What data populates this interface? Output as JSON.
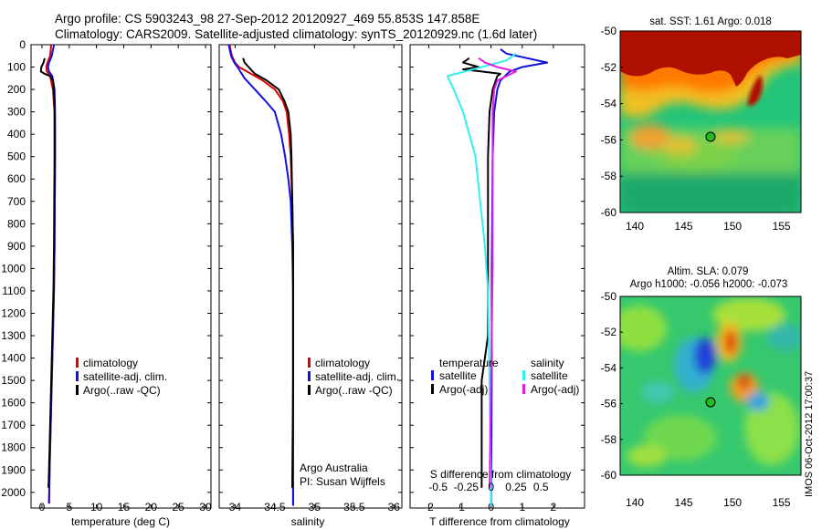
{
  "header": {
    "line1": "Argo profile: CS 5903243_98 27-Sep-2012 20120927_469 55.853S 147.858E",
    "line2": "Climatology: CARS2009. Satellite-adjusted climatology: synTS_20120929.nc (1.6d later)"
  },
  "colors": {
    "climatology": "#e00000",
    "satellite": "#1010e0",
    "argo": "#000000",
    "sat_salinity": "#30f0f0",
    "argo_salinity": "#e020e0"
  },
  "depth_ticks": [
    0,
    100,
    200,
    300,
    400,
    500,
    600,
    700,
    800,
    900,
    1000,
    1100,
    1200,
    1300,
    1400,
    1500,
    1600,
    1700,
    1800,
    1900,
    2000
  ],
  "chart_data": [
    {
      "type": "line",
      "xlabel": "temperature (deg C)",
      "ylabel": "",
      "xlim": [
        -2,
        31
      ],
      "ylim": [
        2070,
        0
      ],
      "xticks": [
        0,
        5,
        10,
        15,
        20,
        25,
        30
      ],
      "legend": [
        "climatology",
        "satellite-adj. clim.",
        "Argo(..raw -QC)"
      ],
      "series": [
        {
          "name": "climatology",
          "points": [
            [
              1.7,
              0
            ],
            [
              1.5,
              50
            ],
            [
              1.0,
              80
            ],
            [
              0.8,
              100
            ],
            [
              0.9,
              120
            ],
            [
              1.5,
              140
            ],
            [
              2.0,
              200
            ],
            [
              2.3,
              300
            ],
            [
              2.4,
              400
            ],
            [
              2.4,
              500
            ],
            [
              2.35,
              700
            ],
            [
              2.3,
              900
            ],
            [
              2.2,
              1100
            ],
            [
              2.0,
              1300
            ],
            [
              1.8,
              1500
            ],
            [
              1.6,
              1700
            ],
            [
              1.4,
              1900
            ],
            [
              1.3,
              2050
            ]
          ]
        },
        {
          "name": "satellite-adj. clim.",
          "points": [
            [
              2.2,
              0
            ],
            [
              1.8,
              50
            ],
            [
              1.3,
              80
            ],
            [
              1.1,
              100
            ],
            [
              1.3,
              120
            ],
            [
              1.9,
              140
            ],
            [
              2.3,
              200
            ],
            [
              2.4,
              300
            ],
            [
              2.4,
              400
            ],
            [
              2.4,
              500
            ],
            [
              2.35,
              700
            ],
            [
              2.3,
              900
            ],
            [
              2.2,
              1100
            ],
            [
              2.0,
              1300
            ],
            [
              1.8,
              1500
            ],
            [
              1.6,
              1700
            ],
            [
              1.4,
              1900
            ],
            [
              1.3,
              2050
            ]
          ]
        },
        {
          "name": "Argo(..raw -QC)",
          "points": [
            [
              0.5,
              60
            ],
            [
              0.3,
              80
            ],
            [
              -0.1,
              100
            ],
            [
              -0.2,
              120
            ],
            [
              0.5,
              130
            ],
            [
              1.5,
              140
            ],
            [
              2.0,
              160
            ],
            [
              2.2,
              200
            ],
            [
              2.3,
              300
            ],
            [
              2.3,
              400
            ],
            [
              2.3,
              500
            ],
            [
              2.25,
              700
            ],
            [
              2.2,
              900
            ],
            [
              2.1,
              1100
            ],
            [
              1.9,
              1300
            ],
            [
              1.7,
              1500
            ],
            [
              1.5,
              1700
            ],
            [
              1.3,
              1900
            ],
            [
              1.2,
              1980
            ]
          ]
        }
      ]
    },
    {
      "type": "line",
      "xlabel": "salinity",
      "xlim": [
        33.8,
        36.1
      ],
      "ylim": [
        2070,
        0
      ],
      "xticks": [
        34,
        34.5,
        35,
        35.5,
        36
      ],
      "legend": [
        "climatology",
        "satellite-adj. clim.",
        "Argo(..raw -QC)"
      ],
      "annotation": [
        "Argo Australia",
        "PI: Susan Wijffels"
      ],
      "series": [
        {
          "name": "climatology",
          "points": [
            [
              33.93,
              0
            ],
            [
              33.96,
              50
            ],
            [
              34.0,
              80
            ],
            [
              34.05,
              100
            ],
            [
              34.2,
              130
            ],
            [
              34.35,
              160
            ],
            [
              34.5,
              200
            ],
            [
              34.6,
              250
            ],
            [
              34.65,
              300
            ],
            [
              34.68,
              400
            ],
            [
              34.7,
              500
            ],
            [
              34.72,
              700
            ],
            [
              34.73,
              900
            ],
            [
              34.73,
              1100
            ],
            [
              34.73,
              1500
            ],
            [
              34.73,
              2060
            ]
          ]
        },
        {
          "name": "satellite-adj. clim.",
          "points": [
            [
              33.92,
              0
            ],
            [
              33.95,
              50
            ],
            [
              33.99,
              80
            ],
            [
              34.03,
              100
            ],
            [
              34.12,
              150
            ],
            [
              34.25,
              200
            ],
            [
              34.38,
              250
            ],
            [
              34.5,
              300
            ],
            [
              34.58,
              400
            ],
            [
              34.63,
              500
            ],
            [
              34.67,
              600
            ],
            [
              34.7,
              700
            ],
            [
              34.72,
              900
            ],
            [
              34.73,
              1100
            ],
            [
              34.73,
              1500
            ],
            [
              34.73,
              2060
            ]
          ]
        },
        {
          "name": "Argo(..raw -QC)",
          "points": [
            [
              34.1,
              60
            ],
            [
              34.12,
              80
            ],
            [
              34.17,
              100
            ],
            [
              34.25,
              130
            ],
            [
              34.4,
              160
            ],
            [
              34.55,
              200
            ],
            [
              34.62,
              250
            ],
            [
              34.67,
              300
            ],
            [
              34.7,
              400
            ],
            [
              34.71,
              500
            ],
            [
              34.72,
              700
            ],
            [
              34.73,
              900
            ],
            [
              34.73,
              1100
            ],
            [
              34.73,
              1500
            ],
            [
              34.72,
              1980
            ]
          ]
        }
      ]
    },
    {
      "type": "line",
      "xlabel": "T difference from climatology",
      "xlabel_top": "S difference from climatology",
      "xlim": [
        -2.6,
        3.0
      ],
      "ylim": [
        2070,
        0
      ],
      "xticks": [
        -2,
        -1,
        0,
        1,
        2
      ],
      "top_ticks": [
        {
          "label": "-0.5",
          "x": -1.7
        },
        {
          "label": "-0.25",
          "x": -0.8
        },
        {
          "label": "0",
          "x": 0
        },
        {
          "label": "0.25",
          "x": 0.8
        },
        {
          "label": "0.5",
          "x": 1.6
        }
      ],
      "legend_left_title": "temperature",
      "legend_right_title": "salinity",
      "legend": [
        "satellite",
        "Argo(-adj)",
        "satellite",
        "Argo(-adj)"
      ],
      "series": [
        {
          "name": "temperature satellite",
          "points": [
            [
              0.3,
              20
            ],
            [
              0.5,
              40
            ],
            [
              1.8,
              80
            ],
            [
              1.0,
              100
            ],
            [
              0.6,
              120
            ],
            [
              0.3,
              160
            ],
            [
              0.2,
              200
            ],
            [
              0.1,
              300
            ],
            [
              0.05,
              500
            ],
            [
              0.02,
              1000
            ],
            [
              0.02,
              1500
            ],
            [
              0.0,
              2060
            ]
          ]
        },
        {
          "name": "temperature Argo(-adj)",
          "points": [
            [
              -0.7,
              60
            ],
            [
              -0.9,
              80
            ],
            [
              -0.4,
              100
            ],
            [
              -0.9,
              110
            ],
            [
              -0.3,
              120
            ],
            [
              0.3,
              130
            ],
            [
              0.2,
              140
            ],
            [
              0.05,
              200
            ],
            [
              -0.05,
              300
            ],
            [
              -0.1,
              500
            ],
            [
              -0.1,
              800
            ],
            [
              -0.1,
              1000
            ],
            [
              -0.1,
              1300
            ],
            [
              -0.2,
              1400
            ],
            [
              -0.3,
              1500
            ],
            [
              -0.3,
              1700
            ],
            [
              -0.3,
              1900
            ],
            [
              -0.3,
              1980
            ]
          ]
        },
        {
          "name": "salinity satellite",
          "points": [
            [
              0.8,
              40
            ],
            [
              0.5,
              70
            ],
            [
              -0.3,
              100
            ],
            [
              -1.4,
              140
            ],
            [
              -1.2,
              200
            ],
            [
              -0.9,
              300
            ],
            [
              -0.7,
              400
            ],
            [
              -0.5,
              500
            ],
            [
              -0.35,
              700
            ],
            [
              -0.2,
              900
            ],
            [
              -0.1,
              1100
            ],
            [
              -0.05,
              1500
            ],
            [
              0.0,
              2060
            ]
          ]
        },
        {
          "name": "salinity Argo(-adj)",
          "points": [
            [
              -0.4,
              60
            ],
            [
              -0.2,
              80
            ],
            [
              0.2,
              100
            ],
            [
              0.8,
              120
            ],
            [
              0.5,
              140
            ],
            [
              0.2,
              160
            ],
            [
              0.1,
              200
            ],
            [
              0.05,
              300
            ],
            [
              0.05,
              500
            ],
            [
              0.05,
              1000
            ],
            [
              0.0,
              1500
            ],
            [
              -0.05,
              1980
            ]
          ]
        }
      ]
    },
    {
      "type": "heatmap",
      "title": "sat. SST: 1.61 Argo: 0.018",
      "xlim": [
        138.5,
        157
      ],
      "ylim": [
        -61,
        -50
      ],
      "xticks": [
        140,
        145,
        150,
        155
      ],
      "yticks": [
        -50,
        -52,
        -54,
        -56,
        -58,
        -60
      ],
      "marker": {
        "lon": 147.858,
        "lat": -55.853
      }
    },
    {
      "type": "heatmap",
      "title": "Altim. SLA: 0.079",
      "subtitle": "Argo h1000: -0.056 h2000: -0.073",
      "xlim": [
        138.5,
        157
      ],
      "ylim": [
        -61,
        -50
      ],
      "xticks": [
        140,
        145,
        150,
        155
      ],
      "yticks": [
        -50,
        -52,
        -54,
        -56,
        -58,
        -60
      ],
      "marker": {
        "lon": 147.858,
        "lat": -55.853
      }
    }
  ],
  "footer_stamp": "IMOS 06-Oct-2012 17:00:37"
}
